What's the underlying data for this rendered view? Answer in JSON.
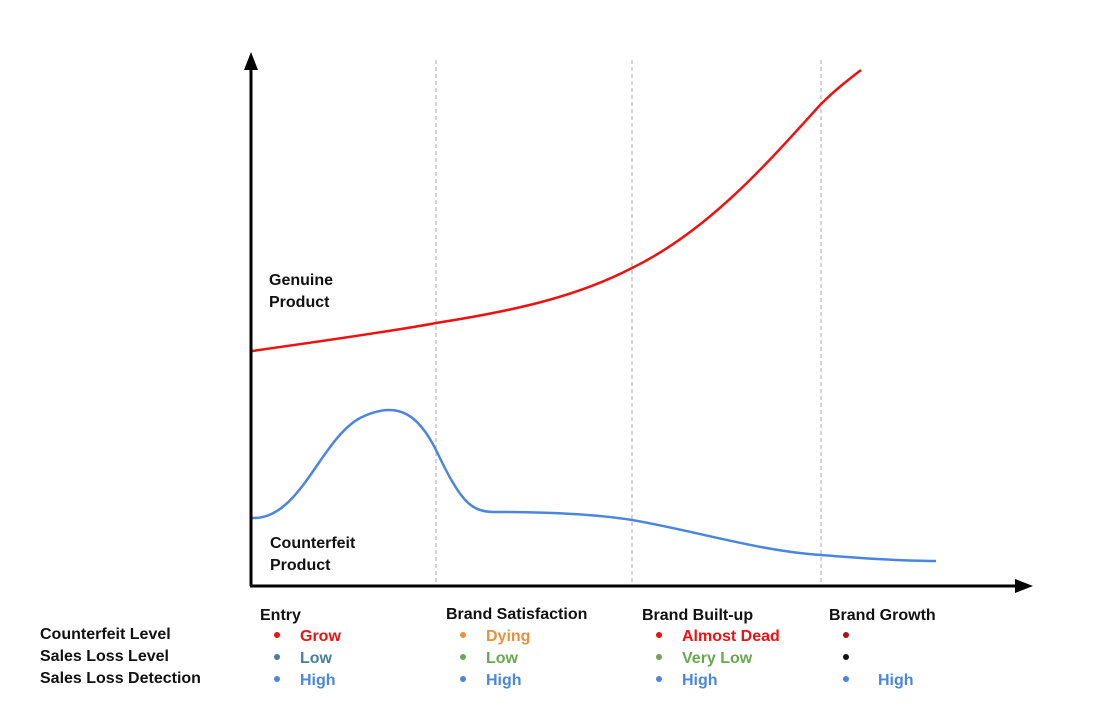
{
  "curve_labels": {
    "genuine_line1": "Genuine",
    "genuine_line2": "Product",
    "counterfeit_line1": "Counterfeit",
    "counterfeit_line2": "Product"
  },
  "row_labels": [
    "Counterfeit Level",
    "Sales Loss Level",
    "Sales Loss Detection"
  ],
  "phases": [
    {
      "title": "Entry",
      "items": [
        {
          "text": "Grow",
          "text_color": "#ee1111",
          "bullet_color": "#ee1111"
        },
        {
          "text": "Low",
          "text_color": "#4a7f9c",
          "bullet_color": "#4a7f9c"
        },
        {
          "text": "High",
          "text_color": "#4a86e0",
          "bullet_color": "#4a86e0"
        }
      ]
    },
    {
      "title": "Brand Satisfaction",
      "items": [
        {
          "text": "Dying",
          "text_color": "#e8913a",
          "bullet_color": "#e8913a"
        },
        {
          "text": "Low",
          "text_color": "#6aa84f",
          "bullet_color": "#6aa84f"
        },
        {
          "text": "High",
          "text_color": "#4a86e0",
          "bullet_color": "#4a86e0"
        }
      ]
    },
    {
      "title": "Brand Built-up",
      "items": [
        {
          "text": "Almost Dead",
          "text_color": "#ee1111",
          "bullet_color": "#ee1111"
        },
        {
          "text": "Very Low",
          "text_color": "#6aa84f",
          "bullet_color": "#6aa84f"
        },
        {
          "text": "High",
          "text_color": "#4a86e0",
          "bullet_color": "#4a86e0"
        }
      ]
    },
    {
      "title": "Brand Growth",
      "items": [
        {
          "text": "",
          "text_color": "#aa1111",
          "bullet_color": "#aa1111"
        },
        {
          "text": "",
          "text_color": "#111111",
          "bullet_color": "#111111"
        },
        {
          "text": "High",
          "text_color": "#4a86e0",
          "bullet_color": "#4a86e0"
        }
      ]
    }
  ],
  "colors": {
    "genuine_curve": "#ee1111",
    "counterfeit_curve": "#4a86e0",
    "axis": "#000000",
    "divider": "#aaaaaa"
  }
}
